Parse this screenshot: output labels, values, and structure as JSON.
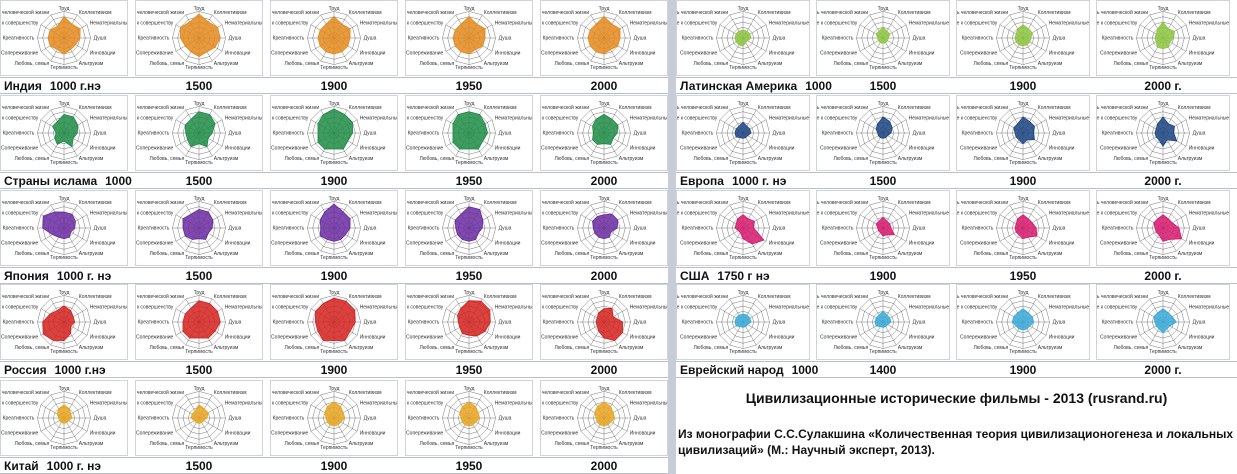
{
  "axes": [
    "Труд",
    "Коллективизм",
    "Нематериальные ценности",
    "Душа",
    "Инновации",
    "Альтруизм",
    "Терпимость",
    "Любовь, семья",
    "Сопереживание",
    "Креативность",
    "Стремление к совершенству",
    "Ценность человеческой жизни"
  ],
  "regions": [
    {
      "label": "Индия",
      "color": "#e48a1c",
      "periods": [
        {
          "label": "1000 г.нэ",
          "values": [
            0.8,
            0.6,
            0.7,
            0.6,
            0.5,
            0.5,
            0.6,
            0.5,
            0.6,
            0.6,
            0.6,
            0.5
          ]
        },
        {
          "label": "1500",
          "values": [
            0.9,
            0.7,
            0.8,
            0.8,
            0.7,
            0.6,
            0.7,
            0.6,
            0.6,
            0.7,
            0.8,
            0.7
          ]
        },
        {
          "label": "1900",
          "values": [
            0.8,
            0.6,
            0.7,
            0.6,
            0.6,
            0.6,
            0.6,
            0.6,
            0.6,
            0.6,
            0.6,
            0.6
          ]
        },
        {
          "label": "1950",
          "values": [
            0.8,
            0.6,
            0.7,
            0.6,
            0.6,
            0.5,
            0.6,
            0.6,
            0.6,
            0.6,
            0.6,
            0.6
          ]
        },
        {
          "label": "2000",
          "values": [
            0.8,
            0.6,
            0.7,
            0.6,
            0.6,
            0.5,
            0.6,
            0.6,
            0.6,
            0.6,
            0.6,
            0.6
          ]
        }
      ]
    },
    {
      "label": "Страны ислама",
      "color": "#1e8c45",
      "periods": [
        {
          "label": "1000",
          "values": [
            0.7,
            0.7,
            0.6,
            0.5,
            0.4,
            0.6,
            0.3,
            0.5,
            0.4,
            0.3,
            0.5,
            0.5
          ]
        },
        {
          "label": "1500",
          "values": [
            0.8,
            0.8,
            0.7,
            0.5,
            0.4,
            0.6,
            0.4,
            0.6,
            0.5,
            0.5,
            0.6,
            0.6
          ]
        },
        {
          "label": "1900",
          "values": [
            0.9,
            0.8,
            0.8,
            0.7,
            0.6,
            0.7,
            0.6,
            0.7,
            0.7,
            0.6,
            0.7,
            0.8
          ]
        },
        {
          "label": "1950",
          "values": [
            0.8,
            0.8,
            0.7,
            0.7,
            0.6,
            0.7,
            0.6,
            0.7,
            0.7,
            0.6,
            0.7,
            0.8
          ]
        },
        {
          "label": "2000",
          "values": [
            0.7,
            0.6,
            0.6,
            0.5,
            0.4,
            0.5,
            0.4,
            0.5,
            0.5,
            0.4,
            0.5,
            0.6
          ]
        }
      ]
    },
    {
      "label": "Япония",
      "color": "#6a2aa0",
      "periods": [
        {
          "label": "1000 г. нэ",
          "values": [
            0.6,
            0.6,
            0.5,
            0.4,
            0.3,
            0.4,
            0.4,
            0.4,
            0.5,
            0.8,
            0.9,
            0.7
          ]
        },
        {
          "label": "1500",
          "values": [
            0.7,
            0.7,
            0.6,
            0.5,
            0.4,
            0.5,
            0.4,
            0.5,
            0.6,
            0.6,
            0.7,
            0.6
          ]
        },
        {
          "label": "1900",
          "values": [
            0.9,
            0.7,
            0.7,
            0.6,
            0.5,
            0.5,
            0.5,
            0.5,
            0.6,
            0.5,
            0.6,
            0.7
          ]
        },
        {
          "label": "1950",
          "values": [
            0.8,
            0.8,
            0.6,
            0.5,
            0.4,
            0.5,
            0.5,
            0.5,
            0.5,
            0.5,
            0.6,
            0.6
          ]
        },
        {
          "label": "2000",
          "values": [
            0.5,
            0.6,
            0.6,
            0.5,
            0.3,
            0.4,
            0.4,
            0.4,
            0.4,
            0.4,
            0.5,
            0.5
          ]
        }
      ]
    },
    {
      "label": "Россия",
      "color": "#d3211e",
      "periods": [
        {
          "label": "1000 г.нэ",
          "values": [
            0.6,
            0.5,
            0.4,
            0.4,
            0.3,
            0.5,
            0.7,
            0.8,
            0.9,
            0.8,
            0.6,
            0.5
          ]
        },
        {
          "label": "1500",
          "values": [
            0.8,
            0.8,
            0.8,
            0.8,
            0.7,
            0.7,
            0.6,
            0.7,
            0.7,
            0.6,
            0.6,
            0.6
          ]
        },
        {
          "label": "1900",
          "values": [
            0.9,
            0.9,
            0.9,
            0.8,
            0.7,
            0.8,
            0.7,
            0.8,
            0.7,
            0.7,
            0.8,
            0.8
          ]
        },
        {
          "label": "1950",
          "values": [
            0.8,
            0.9,
            0.9,
            0.8,
            0.7,
            0.6,
            0.5,
            0.5,
            0.4,
            0.4,
            0.5,
            0.6
          ]
        },
        {
          "label": "2000",
          "values": [
            0.5,
            0.6,
            0.4,
            0.7,
            0.8,
            0.8,
            0.6,
            0.4,
            0.3,
            0.3,
            0.3,
            0.4
          ]
        }
      ]
    },
    {
      "label": "Китай",
      "color": "#e8a521",
      "periods": [
        {
          "label": "1000 г. нэ",
          "values": [
            0.5,
            0.4,
            0.3,
            0.3,
            0.2,
            0.2,
            0.2,
            0.2,
            0.2,
            0.2,
            0.3,
            0.4
          ]
        },
        {
          "label": "1500",
          "values": [
            0.5,
            0.4,
            0.4,
            0.3,
            0.2,
            0.2,
            0.2,
            0.2,
            0.2,
            0.3,
            0.3,
            0.3
          ]
        },
        {
          "label": "1900",
          "values": [
            0.6,
            0.5,
            0.4,
            0.4,
            0.3,
            0.3,
            0.3,
            0.3,
            0.3,
            0.3,
            0.4,
            0.5
          ]
        },
        {
          "label": "1950",
          "values": [
            0.6,
            0.5,
            0.4,
            0.4,
            0.3,
            0.3,
            0.3,
            0.3,
            0.3,
            0.3,
            0.4,
            0.5
          ]
        },
        {
          "label": "2000",
          "values": [
            0.6,
            0.5,
            0.4,
            0.4,
            0.3,
            0.3,
            0.3,
            0.3,
            0.3,
            0.3,
            0.4,
            0.5
          ]
        }
      ]
    },
    {
      "label": "Латинская Америка",
      "color": "#8cc63f",
      "periods": [
        {
          "label": "1000",
          "values": [
            0.3,
            0.3,
            0.3,
            0.3,
            0.2,
            0.2,
            0.3,
            0.3,
            0.3,
            0.3,
            0.3,
            0.3
          ]
        },
        {
          "label": "1500",
          "values": [
            0.4,
            0.3,
            0.3,
            0.2,
            0.2,
            0.2,
            0.2,
            0.2,
            0.2,
            0.2,
            0.3,
            0.3
          ]
        },
        {
          "label": "1900",
          "values": [
            0.5,
            0.4,
            0.4,
            0.3,
            0.3,
            0.3,
            0.3,
            0.3,
            0.3,
            0.3,
            0.3,
            0.4
          ]
        },
        {
          "label": "2000 г.",
          "values": [
            0.6,
            0.4,
            0.5,
            0.4,
            0.3,
            0.4,
            0.4,
            0.4,
            0.3,
            0.3,
            0.3,
            0.4
          ]
        }
      ]
    },
    {
      "label": "Европа",
      "color": "#1a4480",
      "periods": [
        {
          "label": "1000 г. нэ",
          "values": [
            0.4,
            0.3,
            0.3,
            0.3,
            0.2,
            0.2,
            0.2,
            0.2,
            0.3,
            0.3,
            0.3,
            0.3
          ]
        },
        {
          "label": "1500",
          "values": [
            0.6,
            0.5,
            0.4,
            0.3,
            0.2,
            0.2,
            0.2,
            0.2,
            0.2,
            0.2,
            0.3,
            0.4
          ]
        },
        {
          "label": "1900",
          "values": [
            0.6,
            0.5,
            0.5,
            0.4,
            0.5,
            0.3,
            0.4,
            0.3,
            0.3,
            0.3,
            0.4,
            0.4
          ]
        },
        {
          "label": "2000 г.",
          "values": [
            0.6,
            0.4,
            0.5,
            0.4,
            0.6,
            0.3,
            0.5,
            0.3,
            0.3,
            0.3,
            0.3,
            0.4
          ]
        }
      ]
    },
    {
      "label": "США",
      "color": "#d6196f",
      "periods": [
        {
          "label": "1750 г нэ",
          "values": [
            0.5,
            0.4,
            0.5,
            0.4,
            0.9,
            0.7,
            0.4,
            0.2,
            0.2,
            0.3,
            0.3,
            0.4
          ]
        },
        {
          "label": "1900",
          "values": [
            0.4,
            0.3,
            0.3,
            0.3,
            0.5,
            0.3,
            0.3,
            0.2,
            0.2,
            0.2,
            0.3,
            0.3
          ]
        },
        {
          "label": "1950",
          "values": [
            0.5,
            0.4,
            0.4,
            0.5,
            0.6,
            0.4,
            0.4,
            0.3,
            0.3,
            0.3,
            0.3,
            0.4
          ]
        },
        {
          "label": "2000 г.",
          "values": [
            0.5,
            0.4,
            0.4,
            0.6,
            0.8,
            0.5,
            0.5,
            0.3,
            0.3,
            0.3,
            0.4,
            0.4
          ]
        }
      ]
    },
    {
      "label": "Еврейский народ",
      "color": "#37a9d8",
      "periods": [
        {
          "label": "1000",
          "values": [
            0.3,
            0.3,
            0.3,
            0.3,
            0.2,
            0.2,
            0.2,
            0.2,
            0.3,
            0.3,
            0.3,
            0.3
          ]
        },
        {
          "label": "1400",
          "values": [
            0.4,
            0.3,
            0.3,
            0.3,
            0.2,
            0.2,
            0.2,
            0.2,
            0.3,
            0.3,
            0.3,
            0.3
          ]
        },
        {
          "label": "1900",
          "values": [
            0.5,
            0.4,
            0.4,
            0.4,
            0.3,
            0.3,
            0.3,
            0.3,
            0.3,
            0.4,
            0.4,
            0.4
          ]
        },
        {
          "label": "2000 г.",
          "values": [
            0.5,
            0.4,
            0.4,
            0.5,
            0.3,
            0.3,
            0.4,
            0.3,
            0.3,
            0.3,
            0.4,
            0.4
          ]
        }
      ]
    }
  ],
  "footer": {
    "title": "Цивилизационные исторические фильмы - 2013 (rusrand.ru)",
    "source": "Из монографии С.С.Сулакшина «Количественная теория цивилизационогенеза и локальных цивилизаций» (М.: Научный эксперт, 2013)."
  },
  "chart_data": {
    "type": "radar",
    "note": "Radar (spider) charts of civilizational value profiles"
  }
}
